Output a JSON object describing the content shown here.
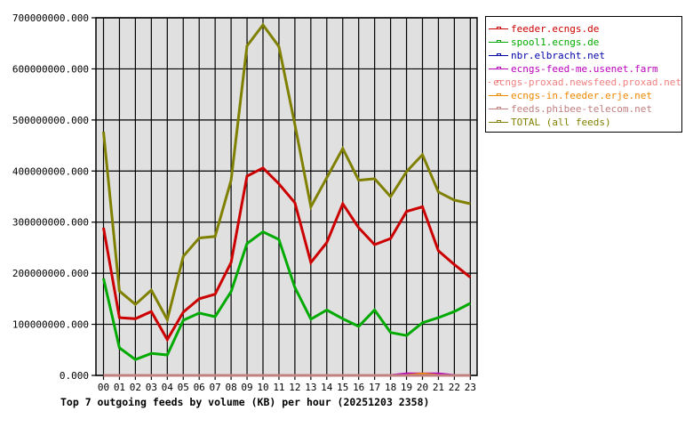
{
  "chart_data": {
    "type": "line",
    "title": "Top 7 outgoing feeds by volume (KB) per hour (20251203 2358)",
    "xlabel": "",
    "ylabel": "",
    "x": [
      "00",
      "01",
      "02",
      "03",
      "04",
      "05",
      "06",
      "07",
      "08",
      "09",
      "10",
      "11",
      "12",
      "13",
      "14",
      "15",
      "16",
      "17",
      "18",
      "19",
      "20",
      "21",
      "22",
      "23"
    ],
    "ylim": [
      0,
      700000000
    ],
    "yticks": [
      "0.000",
      "100000000.000",
      "200000000.000",
      "300000000.000",
      "400000000.000",
      "500000000.000",
      "600000000.000",
      "700000000.000"
    ],
    "grid": true,
    "legend_position": "right",
    "series": [
      {
        "name": "feeder.ecngs.de",
        "color": "#cc0000",
        "values": [
          289000000,
          113000000,
          111000000,
          125000000,
          70000000,
          124000000,
          150000000,
          159000000,
          221000000,
          390000000,
          406000000,
          375000000,
          338000000,
          221000000,
          260000000,
          336000000,
          289000000,
          256000000,
          268000000,
          321000000,
          330000000,
          244000000,
          217000000,
          192000000
        ]
      },
      {
        "name": "spool1.ecngs.de",
        "color": "#00aa00",
        "values": [
          190000000,
          54000000,
          31000000,
          43000000,
          40000000,
          108000000,
          122000000,
          115000000,
          164000000,
          258000000,
          281000000,
          266000000,
          172000000,
          110000000,
          128000000,
          111000000,
          96000000,
          128000000,
          84000000,
          78000000,
          103000000,
          113000000,
          125000000,
          141000000
        ]
      },
      {
        "name": "nbr.elbracht.net",
        "color": "#0000aa",
        "values": [
          0,
          0,
          0,
          0,
          0,
          0,
          0,
          0,
          0,
          0,
          0,
          0,
          0,
          0,
          0,
          0,
          0,
          0,
          0,
          0,
          0,
          0,
          0,
          0
        ]
      },
      {
        "name": "ecngs-feed-me.usenet.farm",
        "color": "#bb00bb",
        "values": [
          0,
          0,
          0,
          0,
          0,
          0,
          0,
          0,
          0,
          0,
          0,
          0,
          0,
          0,
          0,
          0,
          0,
          0,
          0,
          3000000,
          3000000,
          3000000,
          0,
          0
        ]
      },
      {
        "name": "ecngs-proxad.newsfeed.proxad.net",
        "color": "#f08080",
        "values": [
          0,
          0,
          0,
          0,
          0,
          0,
          0,
          0,
          0,
          0,
          0,
          0,
          0,
          0,
          0,
          0,
          0,
          0,
          0,
          0,
          0,
          0,
          0,
          0
        ]
      },
      {
        "name": "ecngs-in.feeder.erje.net",
        "color": "#ee8800",
        "values": [
          0,
          0,
          0,
          0,
          0,
          0,
          0,
          0,
          0,
          0,
          0,
          0,
          0,
          0,
          0,
          0,
          0,
          0,
          0,
          0,
          3000000,
          0,
          0,
          0
        ]
      },
      {
        "name": "feeds.phibee-telecom.net",
        "color": "#c08080",
        "values": [
          0,
          0,
          0,
          0,
          0,
          0,
          0,
          0,
          0,
          0,
          0,
          0,
          0,
          0,
          0,
          0,
          0,
          0,
          0,
          0,
          0,
          0,
          0,
          0
        ]
      },
      {
        "name": "TOTAL (all feeds)",
        "color": "#808000",
        "values": [
          477000000,
          165000000,
          139000000,
          167000000,
          109000000,
          233000000,
          269000000,
          272000000,
          382000000,
          645000000,
          686000000,
          644000000,
          491000000,
          330000000,
          387000000,
          444000000,
          382000000,
          385000000,
          350000000,
          399000000,
          432000000,
          359000000,
          343000000,
          336000000
        ]
      }
    ]
  },
  "legend": {
    "items": [
      {
        "label": "feeder.ecngs.de",
        "color": "#cc0000"
      },
      {
        "label": "spool1.ecngs.de",
        "color": "#00aa00"
      },
      {
        "label": "nbr.elbracht.net",
        "color": "#0000aa"
      },
      {
        "label": "ecngs-feed-me.usenet.farm",
        "color": "#bb00bb"
      },
      {
        "label": "ecngs-proxad.newsfeed.proxad.net",
        "color": "#f08080"
      },
      {
        "label": "ecngs-in.feeder.erje.net",
        "color": "#ee8800"
      },
      {
        "label": "feeds.phibee-telecom.net",
        "color": "#c08080"
      },
      {
        "label": "TOTAL (all feeds)",
        "color": "#808000"
      }
    ]
  },
  "caption": "Top 7 outgoing feeds by volume (KB) per hour (20251203 2358)",
  "colors": {
    "plot_bg": "#e0e0e0",
    "grid": "#000000",
    "axis": "#000000"
  }
}
